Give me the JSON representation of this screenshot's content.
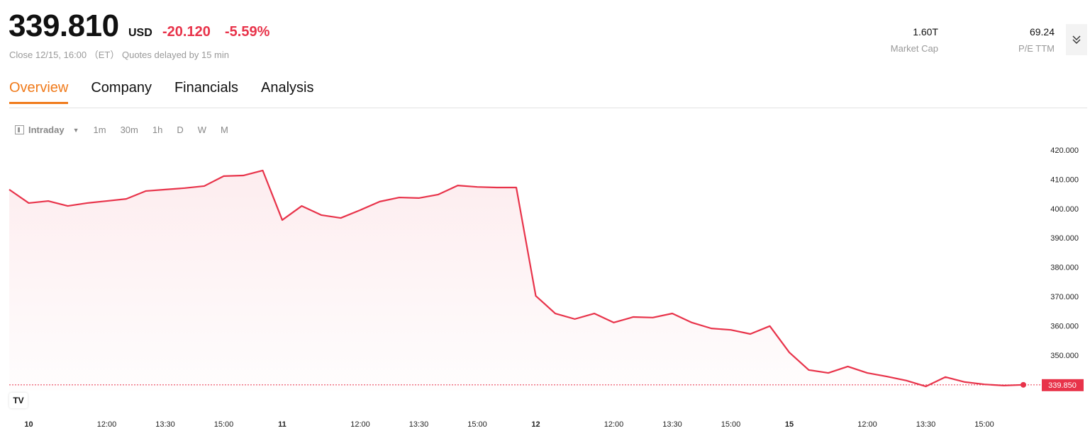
{
  "quote": {
    "price": "339.810",
    "currency": "USD",
    "change": "-20.120",
    "change_pct": "-5.59%",
    "status": "Close 12/15, 16:00 （ET） Quotes delayed by 15 min"
  },
  "stats": [
    {
      "value": "1.60T",
      "label": "Market Cap"
    },
    {
      "value": "69.24",
      "label": "P/E TTM"
    }
  ],
  "tabs": [
    {
      "label": "Overview",
      "active": true
    },
    {
      "label": "Company"
    },
    {
      "label": "Financials"
    },
    {
      "label": "Analysis"
    }
  ],
  "ranges": {
    "selected": "Intraday",
    "options": [
      "1m",
      "30m",
      "1h",
      "D",
      "W",
      "M"
    ]
  },
  "colors": {
    "accent": "#f07a1a",
    "down": "#e8334a"
  },
  "logo": "TV",
  "chart_data": {
    "type": "area",
    "ylim": [
      337,
      425
    ],
    "y_ticks": [
      "420.000",
      "410.000",
      "400.000",
      "390.000",
      "380.000",
      "370.000",
      "360.000",
      "350.000"
    ],
    "y_tick_values": [
      420,
      410,
      400,
      390,
      380,
      370,
      360,
      350
    ],
    "last_price": "339.850",
    "last_price_value": 339.85,
    "x_ticks": [
      {
        "label": "10",
        "index": 1,
        "bold": true
      },
      {
        "label": "12:00",
        "index": 5
      },
      {
        "label": "13:30",
        "index": 8
      },
      {
        "label": "15:00",
        "index": 11
      },
      {
        "label": "11",
        "index": 14,
        "bold": true
      },
      {
        "label": "12:00",
        "index": 18
      },
      {
        "label": "13:30",
        "index": 21
      },
      {
        "label": "15:00",
        "index": 24
      },
      {
        "label": "12",
        "index": 27,
        "bold": true
      },
      {
        "label": "12:00",
        "index": 31
      },
      {
        "label": "13:30",
        "index": 34
      },
      {
        "label": "15:00",
        "index": 37
      },
      {
        "label": "15",
        "index": 40,
        "bold": true
      },
      {
        "label": "12:00",
        "index": 44
      },
      {
        "label": "13:30",
        "index": 47
      },
      {
        "label": "15:00",
        "index": 50
      }
    ],
    "values": [
      406.5,
      401.9,
      402.6,
      400.9,
      401.9,
      402.6,
      403.3,
      406.0,
      406.5,
      407.0,
      407.7,
      411.1,
      411.3,
      413.0,
      396.1,
      400.9,
      397.8,
      396.8,
      399.5,
      402.4,
      403.8,
      403.6,
      404.8,
      407.9,
      407.4,
      407.2,
      407.2,
      370.2,
      364.2,
      362.3,
      364.2,
      361.1,
      363.0,
      362.8,
      364.2,
      361.1,
      359.1,
      358.6,
      357.2,
      359.9,
      350.9,
      344.9,
      343.9,
      346.1,
      343.9,
      342.7,
      341.3,
      339.3,
      342.5,
      340.8,
      340.0,
      339.6,
      339.85
    ]
  }
}
